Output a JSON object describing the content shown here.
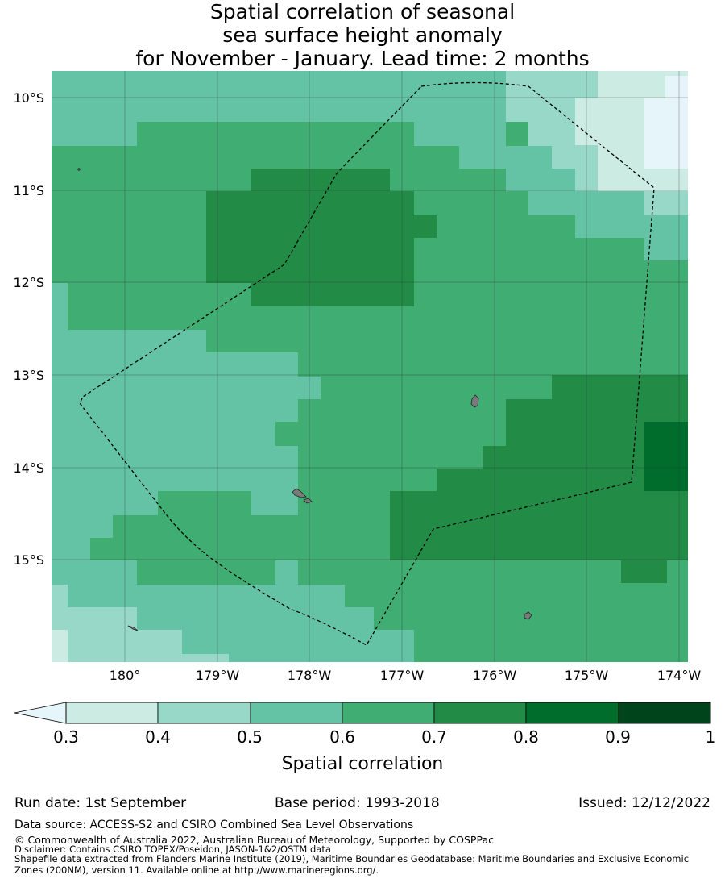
{
  "title": {
    "line1": "Spatial correlation of seasonal",
    "line2": "sea surface height anomaly",
    "line3": "for November - January. Lead time: 2 months"
  },
  "map": {
    "lat_labels": [
      "10°S",
      "11°S",
      "12°S",
      "13°S",
      "14°S",
      "15°S"
    ],
    "lon_labels": [
      "180°",
      "179°W",
      "178°W",
      "177°W",
      "176°W",
      "175°W",
      "174°W"
    ]
  },
  "colorbar": {
    "label": "Spatial correlation",
    "ticks": [
      "0.3",
      "0.4",
      "0.5",
      "0.6",
      "0.7",
      "0.8",
      "0.9",
      "1"
    ],
    "colors": [
      "#cbebe3",
      "#98d8c8",
      "#63c3a4",
      "#40ad72",
      "#228b45",
      "#006d2c",
      "#00441b"
    ],
    "under_color": "#e5f5f9"
  },
  "footer": {
    "run_date": "Run date: 1st September",
    "base_period": "Base period: 1993-2018",
    "issued": "Issued: 12/12/2022",
    "data_source": "Data source: ACCESS-S2 and CSIRO Combined Sea Level Observations",
    "copyright": "© Commonwealth of Australia 2022, Australian Bureau of Meteorology, Supported by COSPPac",
    "disclaimer": "Disclaimer: Contains CSIRO TOPEX/Poseidon, JASON-1&2/OSTM data",
    "shapefile1": "Shapefile data extracted from Flanders Marine Institute (2019), Maritime Boundaries Geodatabase: Maritime Boundaries and Exclusive Economic",
    "shapefile2": "Zones (200NM), version 11. Available online at http://www.marineregions.org/."
  }
}
